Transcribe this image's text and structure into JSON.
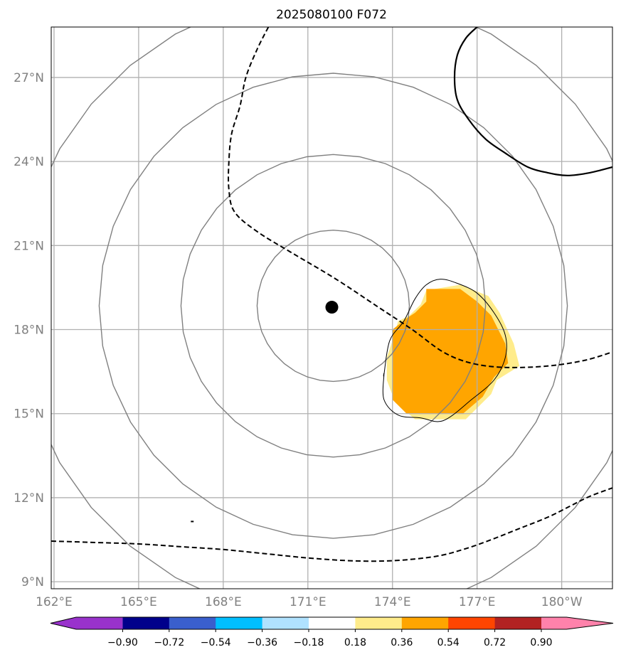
{
  "chart_data": {
    "type": "heatmap",
    "title": "2025080100 F072",
    "projection": "lat-lon map",
    "xlim": [
      161.9,
      181.8
    ],
    "ylim": [
      8.75,
      28.8
    ],
    "grid": true,
    "x_ticks": [
      {
        "value": 162,
        "label": "162°E"
      },
      {
        "value": 165,
        "label": "165°E"
      },
      {
        "value": 168,
        "label": "168°E"
      },
      {
        "value": 171,
        "label": "171°E"
      },
      {
        "value": 174,
        "label": "174°E"
      },
      {
        "value": 177,
        "label": "177°E"
      },
      {
        "value": 180,
        "label": "180°W"
      }
    ],
    "y_ticks": [
      {
        "value": 9,
        "label": "9°N"
      },
      {
        "value": 12,
        "label": "12°N"
      },
      {
        "value": 15,
        "label": "15°N"
      },
      {
        "value": 18,
        "label": "18°N"
      },
      {
        "value": 21,
        "label": "21°N"
      },
      {
        "value": 24,
        "label": "24°N"
      },
      {
        "value": 27,
        "label": "27°N"
      }
    ],
    "center_marker": {
      "lon": 171.85,
      "lat": 18.8
    },
    "range_rings": [
      {
        "lon": 171.9,
        "lat": 18.85,
        "radius_deg": 2.7
      },
      {
        "lon": 171.9,
        "lat": 18.85,
        "radius_deg": 5.4
      },
      {
        "lon": 171.9,
        "lat": 18.85,
        "radius_deg": 8.3
      },
      {
        "lon": 171.9,
        "lat": 18.85,
        "radius_deg": 11.2
      }
    ],
    "shaded_regions": [
      {
        "value_bin": "0.18–0.36",
        "color": "#FFEC8B",
        "points": [
          [
            174.0,
            17.6
          ],
          [
            174.2,
            18.3
          ],
          [
            174.6,
            18.5
          ],
          [
            175.0,
            18.9
          ],
          [
            175.2,
            19.4
          ],
          [
            176.4,
            19.6
          ],
          [
            177.4,
            19.2
          ],
          [
            177.8,
            18.6
          ],
          [
            178.3,
            17.5
          ],
          [
            178.5,
            16.7
          ],
          [
            177.7,
            16.2
          ],
          [
            177.5,
            15.7
          ],
          [
            176.6,
            14.8
          ],
          [
            175.8,
            14.8
          ],
          [
            174.8,
            14.8
          ],
          [
            174.1,
            15.4
          ],
          [
            173.8,
            16.2
          ],
          [
            173.8,
            17.0
          ]
        ]
      },
      {
        "value_bin": "0.36–0.54",
        "color": "#FFA500",
        "points": [
          [
            174.0,
            18.0
          ],
          [
            174.5,
            18.4
          ],
          [
            174.8,
            18.6
          ],
          [
            175.2,
            19.0
          ],
          [
            175.2,
            19.45
          ],
          [
            176.4,
            19.45
          ],
          [
            177.0,
            19.0
          ],
          [
            177.5,
            18.5
          ],
          [
            178.0,
            17.5
          ],
          [
            178.1,
            16.8
          ],
          [
            177.6,
            16.3
          ],
          [
            177.2,
            15.6
          ],
          [
            176.5,
            15.0
          ],
          [
            175.6,
            15.0
          ],
          [
            174.5,
            15.0
          ],
          [
            174.0,
            15.5
          ],
          [
            174.0,
            16.5
          ]
        ]
      }
    ],
    "contours": [
      {
        "style": "solid-thin",
        "color": "#000000",
        "points": [
          [
            173.7,
            16.4
          ],
          [
            173.9,
            17.6
          ],
          [
            174.4,
            18.3
          ],
          [
            174.8,
            19.1
          ],
          [
            175.2,
            19.6
          ],
          [
            175.7,
            19.8
          ],
          [
            176.3,
            19.65
          ],
          [
            177.0,
            19.3
          ],
          [
            177.6,
            18.6
          ],
          [
            178.0,
            17.8
          ],
          [
            178.0,
            17.0
          ],
          [
            177.6,
            16.2
          ],
          [
            176.8,
            15.5
          ],
          [
            175.8,
            14.75
          ],
          [
            175.0,
            14.85
          ],
          [
            174.2,
            14.95
          ],
          [
            173.7,
            15.5
          ],
          [
            173.7,
            16.4
          ]
        ]
      },
      {
        "style": "dashed",
        "color": "#000000",
        "points": [
          [
            169.6,
            28.8
          ],
          [
            169.2,
            28.0
          ],
          [
            168.8,
            27.0
          ],
          [
            168.6,
            26.0
          ],
          [
            168.3,
            25.0
          ],
          [
            168.2,
            24.0
          ],
          [
            168.2,
            23.0
          ],
          [
            168.4,
            22.2
          ],
          [
            169.2,
            21.5
          ],
          [
            170.5,
            20.7
          ],
          [
            172.0,
            19.8
          ],
          [
            173.5,
            18.8
          ],
          [
            174.7,
            18.0
          ],
          [
            175.8,
            17.2
          ],
          [
            176.8,
            16.8
          ],
          [
            178.0,
            16.65
          ],
          [
            179.5,
            16.7
          ],
          [
            180.8,
            16.9
          ],
          [
            181.8,
            17.2
          ]
        ]
      },
      {
        "style": "dashed",
        "color": "#000000",
        "points": [
          [
            161.9,
            10.45
          ],
          [
            163.5,
            10.4
          ],
          [
            165.0,
            10.35
          ],
          [
            166.5,
            10.25
          ],
          [
            168.0,
            10.15
          ],
          [
            169.5,
            10.0
          ],
          [
            171.0,
            9.85
          ],
          [
            172.5,
            9.75
          ],
          [
            174.0,
            9.75
          ],
          [
            175.5,
            9.9
          ],
          [
            176.5,
            10.15
          ],
          [
            177.5,
            10.5
          ],
          [
            178.5,
            10.9
          ],
          [
            179.5,
            11.3
          ],
          [
            180.3,
            11.7
          ],
          [
            181.0,
            12.05
          ],
          [
            181.8,
            12.35
          ]
        ]
      },
      {
        "style": "solid-thick",
        "color": "#000000",
        "points": [
          [
            177.0,
            28.8
          ],
          [
            176.6,
            28.4
          ],
          [
            176.3,
            27.8
          ],
          [
            176.2,
            27.0
          ],
          [
            176.3,
            26.2
          ],
          [
            176.7,
            25.5
          ],
          [
            177.3,
            24.8
          ],
          [
            178.0,
            24.3
          ],
          [
            178.8,
            23.8
          ],
          [
            179.5,
            23.6
          ],
          [
            180.2,
            23.5
          ],
          [
            181.0,
            23.6
          ],
          [
            181.8,
            23.8
          ]
        ]
      }
    ],
    "colorbar": {
      "colors": [
        "#9932CC",
        "#00008B",
        "#3A5FCD",
        "#00BFFF",
        "#B0E2FF",
        "#FFFFFF",
        "#FFEC8B",
        "#FFA500",
        "#FF4500",
        "#B22222",
        "#FF82AB"
      ],
      "labels": [
        "−0.90",
        "−0.72",
        "−0.54",
        "−0.36",
        "−0.18",
        "0.18",
        "0.36",
        "0.54",
        "0.72",
        "0.90"
      ],
      "extend": "both"
    }
  }
}
